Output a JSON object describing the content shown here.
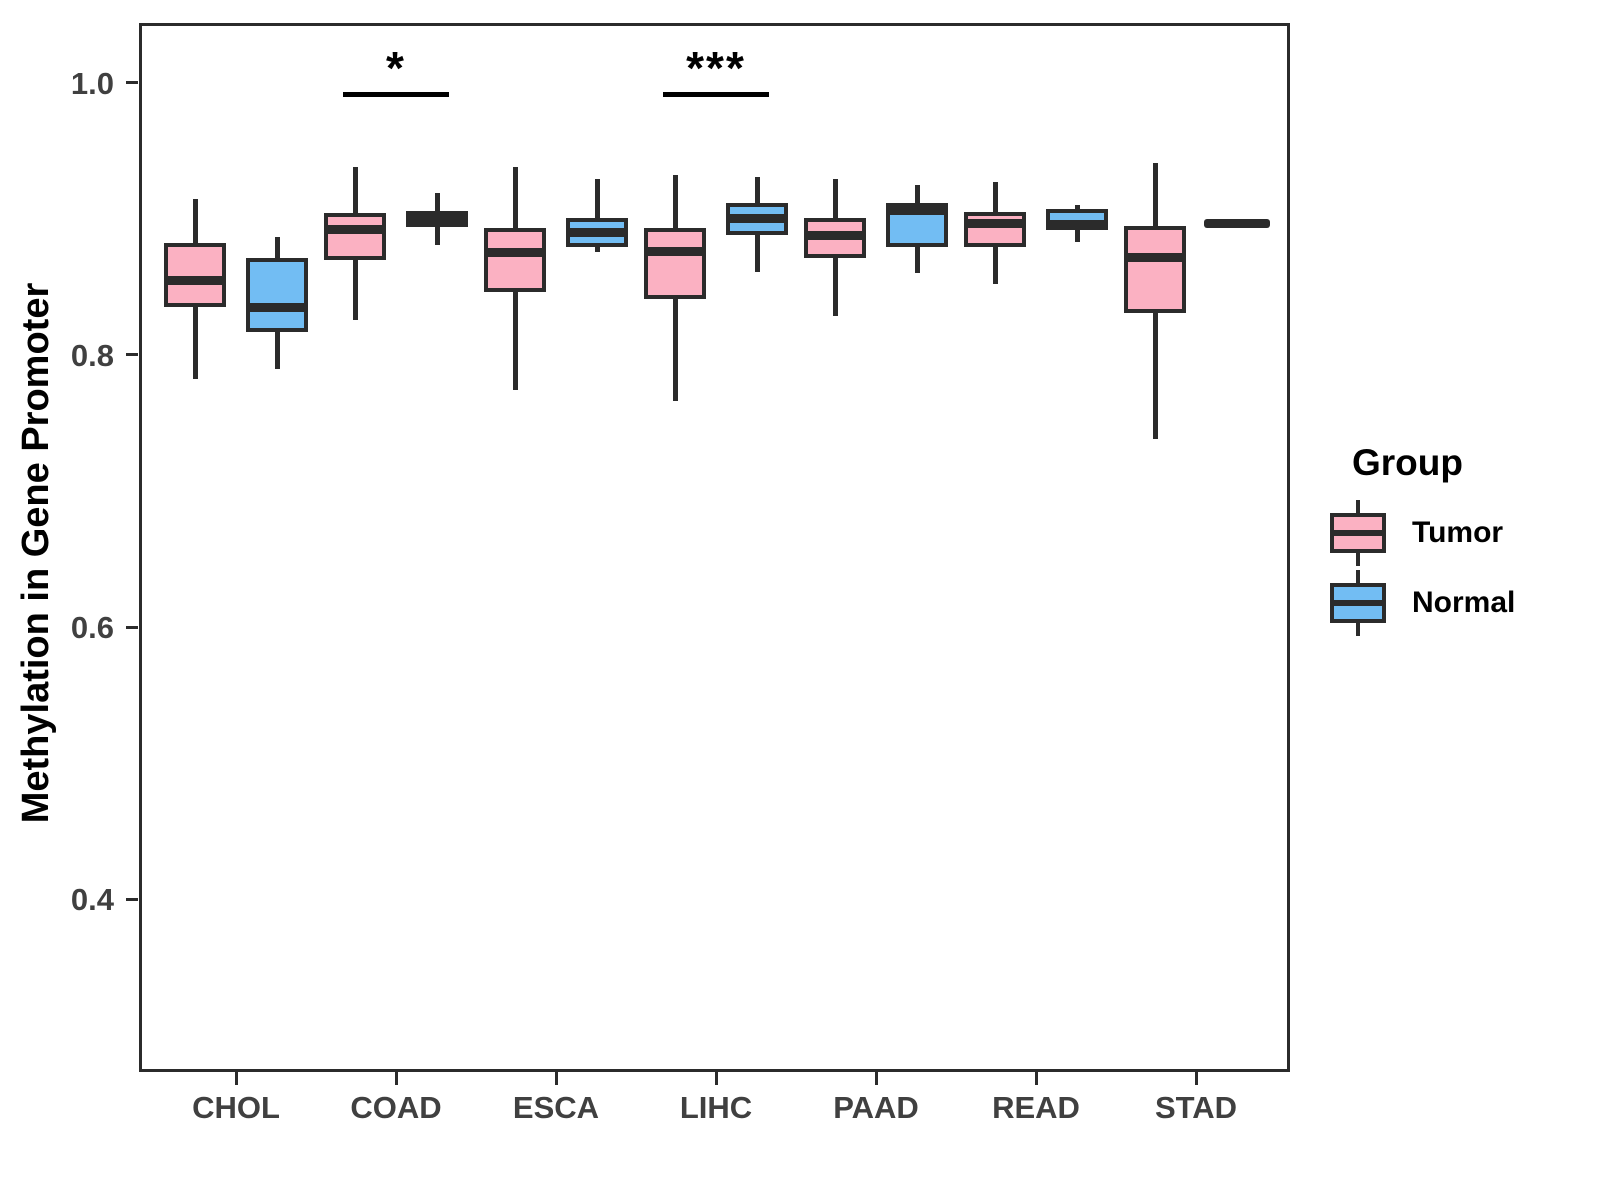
{
  "chart_data": {
    "type": "boxplot",
    "title": "",
    "xlabel": "",
    "ylabel": "Methylation in Gene Promoter",
    "categories": [
      "CHOL",
      "COAD",
      "ESCA",
      "LIHC",
      "PAAD",
      "READ",
      "STAD"
    ],
    "ylim": [
      0.273,
      1.044
    ],
    "yticks": [
      1.0,
      0.8,
      0.6,
      0.4
    ],
    "grid": false,
    "legend": {
      "title": "Group",
      "position": "right",
      "entries": [
        "Tumor",
        "Normal"
      ]
    },
    "colors": {
      "tumor_fill": "#FBB1C2",
      "normal_fill": "#72BDF3",
      "stroke": "#2b2b2b",
      "background": "#ffffff"
    },
    "series": [
      {
        "name": "Tumor",
        "color": "#FBB1C2",
        "boxes": [
          {
            "category": "CHOL",
            "low": 0.782,
            "q1": 0.835,
            "median": 0.855,
            "q3": 0.882,
            "high": 0.915
          },
          {
            "category": "COAD",
            "low": 0.826,
            "q1": 0.87,
            "median": 0.892,
            "q3": 0.904,
            "high": 0.938
          },
          {
            "category": "ESCA",
            "low": 0.774,
            "q1": 0.846,
            "median": 0.875,
            "q3": 0.893,
            "high": 0.938
          },
          {
            "category": "LIHC",
            "low": 0.766,
            "q1": 0.841,
            "median": 0.876,
            "q3": 0.893,
            "high": 0.932
          },
          {
            "category": "PAAD",
            "low": 0.829,
            "q1": 0.871,
            "median": 0.888,
            "q3": 0.901,
            "high": 0.929
          },
          {
            "category": "READ",
            "low": 0.852,
            "q1": 0.879,
            "median": 0.897,
            "q3": 0.905,
            "high": 0.927
          },
          {
            "category": "STAD",
            "low": 0.738,
            "q1": 0.831,
            "median": 0.872,
            "q3": 0.895,
            "high": 0.941
          }
        ]
      },
      {
        "name": "Normal",
        "color": "#72BDF3",
        "boxes": [
          {
            "category": "CHOL",
            "low": 0.79,
            "q1": 0.817,
            "median": 0.835,
            "q3": 0.871,
            "high": 0.887
          },
          {
            "category": "COAD",
            "low": 0.881,
            "q1": 0.894,
            "median": 0.9,
            "q3": 0.906,
            "high": 0.919
          },
          {
            "category": "ESCA",
            "low": 0.876,
            "q1": 0.879,
            "median": 0.89,
            "q3": 0.901,
            "high": 0.929
          },
          {
            "category": "LIHC",
            "low": 0.861,
            "q1": 0.888,
            "median": 0.9,
            "q3": 0.912,
            "high": 0.931
          },
          {
            "category": "PAAD",
            "low": 0.86,
            "q1": 0.879,
            "median": 0.906,
            "q3": 0.912,
            "high": 0.925
          },
          {
            "category": "READ",
            "low": 0.883,
            "q1": 0.892,
            "median": 0.896,
            "q3": 0.907,
            "high": 0.91
          },
          {
            "category": "STAD",
            "low": 0.897,
            "q1": 0.897,
            "median": 0.897,
            "q3": 0.897,
            "high": 0.897
          }
        ]
      }
    ],
    "annotations": [
      {
        "category": "COAD",
        "label": "*",
        "y": 0.993
      },
      {
        "category": "LIHC",
        "label": "***",
        "y": 0.993
      }
    ]
  }
}
